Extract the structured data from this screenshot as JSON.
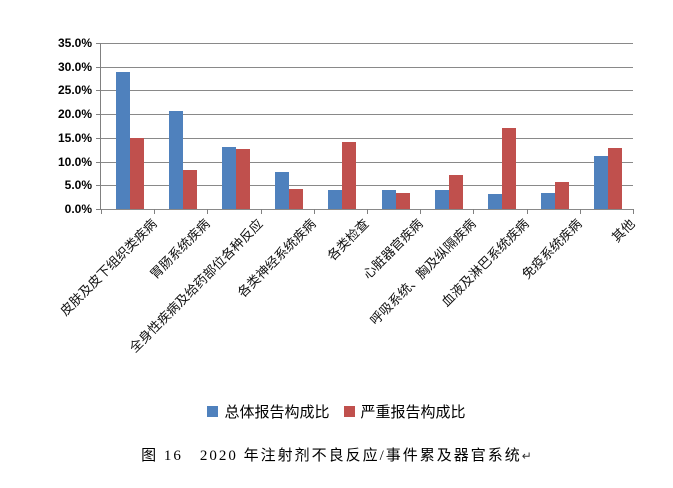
{
  "figure": {
    "caption_text": "图 16　2020 年注射剂不良反应/事件累及器官系统",
    "paragraph_mark": "↵"
  },
  "chart_data": {
    "type": "bar",
    "title": "",
    "xlabel": "",
    "ylabel": "",
    "categories": [
      "皮肤及皮下组织类疾病",
      "胃肠系统疾病",
      "全身性疾病及给药部位各种反应",
      "各类神经系统疾病",
      "各类检查",
      "心脏器官疾病",
      "呼吸系统、胸及纵隔疾病",
      "血液及淋巴系统疾病",
      "免疫系统疾病",
      "其他"
    ],
    "series": [
      {
        "name": "总体报告构成比",
        "color": "#4F81BD",
        "values": [
          28.8,
          20.6,
          13.1,
          7.8,
          4.0,
          4.0,
          4.0,
          3.2,
          3.3,
          11.2
        ]
      },
      {
        "name": "严重报告构成比",
        "color": "#C0504D",
        "values": [
          15.0,
          8.2,
          12.6,
          4.3,
          14.1,
          3.4,
          7.1,
          17.0,
          5.7,
          12.9
        ]
      }
    ],
    "ylim": [
      0,
      35
    ],
    "y_tick_step": 5,
    "y_ticks": [
      "35.0%",
      "30.0%",
      "25.0%",
      "20.0%",
      "15.0%",
      "10.0%",
      "5.0%",
      "0.0%"
    ],
    "grid": true,
    "legend_position": "bottom"
  },
  "colors": {
    "grid": "#898989",
    "axis": "#808080",
    "background": "#FFFFFF"
  }
}
